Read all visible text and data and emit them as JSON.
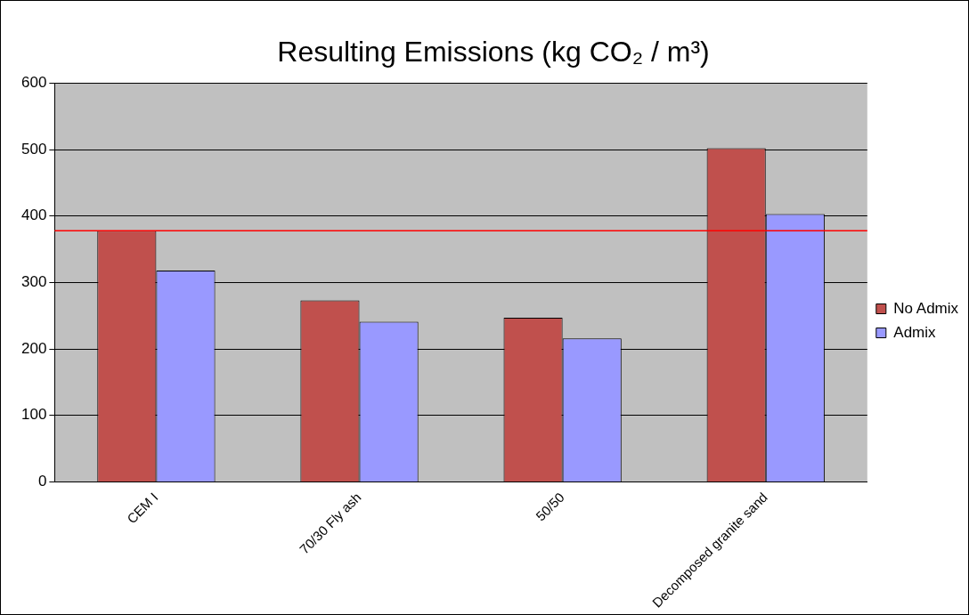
{
  "chart_data": {
    "type": "bar",
    "title": "Resulting Emissions (kg CO₂ / m³)",
    "categories": [
      "CEM I",
      "70/30 Fly ash",
      "50/50",
      "Decomposed granite sand"
    ],
    "series": [
      {
        "name": "No Admix",
        "color": "#c0504d",
        "values": [
          378,
          273,
          247,
          502
        ]
      },
      {
        "name": "Admix",
        "color": "#9999ff",
        "values": [
          318,
          241,
          216,
          403
        ]
      }
    ],
    "ylim": [
      0,
      600
    ],
    "yticks": [
      0,
      100,
      200,
      300,
      400,
      500,
      600
    ],
    "grid": "y",
    "legend": "right",
    "ref_lines": [
      {
        "axis": "y",
        "value": 378,
        "color": "#ff0000"
      }
    ]
  }
}
